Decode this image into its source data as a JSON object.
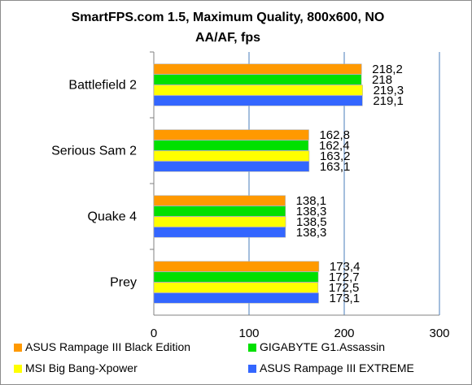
{
  "chart_data": {
    "type": "bar",
    "orientation": "horizontal",
    "title": "SmartFPS.com 1.5, Maximum Quality, 800x600, NO AA/AF, fps",
    "categories": [
      "Battlefield 2",
      "Serious Sam 2",
      "Quake 4",
      "Prey"
    ],
    "series": [
      {
        "name": "ASUS Rampage III Black Edition",
        "color": "#ff9900",
        "values": [
          218.2,
          162.8,
          138.1,
          173.4
        ],
        "labels": [
          "218,2",
          "162,8",
          "138,1",
          "173,4"
        ]
      },
      {
        "name": "GIGABYTE G1.Assassin",
        "color": "#00e000",
        "values": [
          218,
          162.4,
          138.3,
          172.7
        ],
        "labels": [
          "218",
          "162,4",
          "138,3",
          "172,7"
        ]
      },
      {
        "name": "MSI Big Bang-Xpower",
        "color": "#ffff00",
        "values": [
          219.3,
          163.2,
          138.5,
          172.5
        ],
        "labels": [
          "219,3",
          "163,2",
          "138,5",
          "172,5"
        ]
      },
      {
        "name": "ASUS Rampage III EXTREME",
        "color": "#3366ff",
        "values": [
          219.1,
          163.1,
          138.3,
          173.1
        ],
        "labels": [
          "219,1",
          "163,1",
          "138,3",
          "173,1"
        ]
      }
    ],
    "xlim": [
      0,
      300
    ],
    "xticks": [
      "0",
      "100",
      "200",
      "300"
    ],
    "grid": true,
    "legend_position": "bottom"
  }
}
